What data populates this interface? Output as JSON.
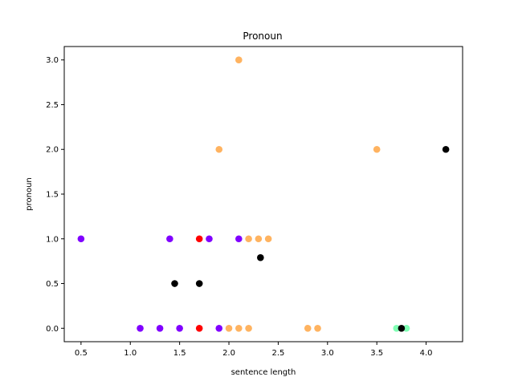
{
  "chart_data": {
    "type": "scatter",
    "title": "Pronoun",
    "xlabel": "sentence length",
    "ylabel": "pronoun",
    "xlim": [
      0.33,
      4.37
    ],
    "ylim": [
      -0.15,
      3.15
    ],
    "xticks": [
      "0.5",
      "1.0",
      "1.5",
      "2.0",
      "2.5",
      "3.0",
      "3.5",
      "4.0"
    ],
    "yticks": [
      "0.0",
      "0.5",
      "1.0",
      "1.5",
      "2.0",
      "2.5",
      "3.0"
    ],
    "grid": false,
    "legend": "none",
    "points": [
      {
        "x": 0.5,
        "y": 1.0,
        "color": "#8000ff"
      },
      {
        "x": 1.4,
        "y": 1.0,
        "color": "#8000ff"
      },
      {
        "x": 1.8,
        "y": 1.0,
        "color": "#8000ff"
      },
      {
        "x": 2.1,
        "y": 1.0,
        "color": "#8000ff"
      },
      {
        "x": 1.1,
        "y": 0.0,
        "color": "#8000ff"
      },
      {
        "x": 1.3,
        "y": 0.0,
        "color": "#8000ff"
      },
      {
        "x": 1.5,
        "y": 0.0,
        "color": "#8000ff"
      },
      {
        "x": 1.9,
        "y": 0.0,
        "color": "#8000ff"
      },
      {
        "x": 1.7,
        "y": 1.0,
        "color": "#ff0000"
      },
      {
        "x": 1.7,
        "y": 0.0,
        "color": "#ff0000"
      },
      {
        "x": 1.45,
        "y": 0.5,
        "color": "#000000"
      },
      {
        "x": 1.7,
        "y": 0.5,
        "color": "#000000"
      },
      {
        "x": 2.32,
        "y": 0.79,
        "color": "#000000"
      },
      {
        "x": 2.1,
        "y": 3.0,
        "color": "#ffb360"
      },
      {
        "x": 1.9,
        "y": 2.0,
        "color": "#ffb360"
      },
      {
        "x": 3.5,
        "y": 2.0,
        "color": "#ffb360"
      },
      {
        "x": 2.2,
        "y": 1.0,
        "color": "#ffb360"
      },
      {
        "x": 2.3,
        "y": 1.0,
        "color": "#ffb360"
      },
      {
        "x": 2.4,
        "y": 1.0,
        "color": "#ffb360"
      },
      {
        "x": 2.0,
        "y": 0.0,
        "color": "#ffb360"
      },
      {
        "x": 2.1,
        "y": 0.0,
        "color": "#ffb360"
      },
      {
        "x": 2.2,
        "y": 0.0,
        "color": "#ffb360"
      },
      {
        "x": 2.8,
        "y": 0.0,
        "color": "#ffb360"
      },
      {
        "x": 2.9,
        "y": 0.0,
        "color": "#ffb360"
      },
      {
        "x": 3.7,
        "y": 0.0,
        "color": "#80ffb4"
      },
      {
        "x": 3.8,
        "y": 0.0,
        "color": "#80ffb4"
      },
      {
        "x": 3.75,
        "y": 0.0,
        "color": "#000000"
      },
      {
        "x": 4.2,
        "y": 2.0,
        "color": "#000000"
      }
    ]
  }
}
